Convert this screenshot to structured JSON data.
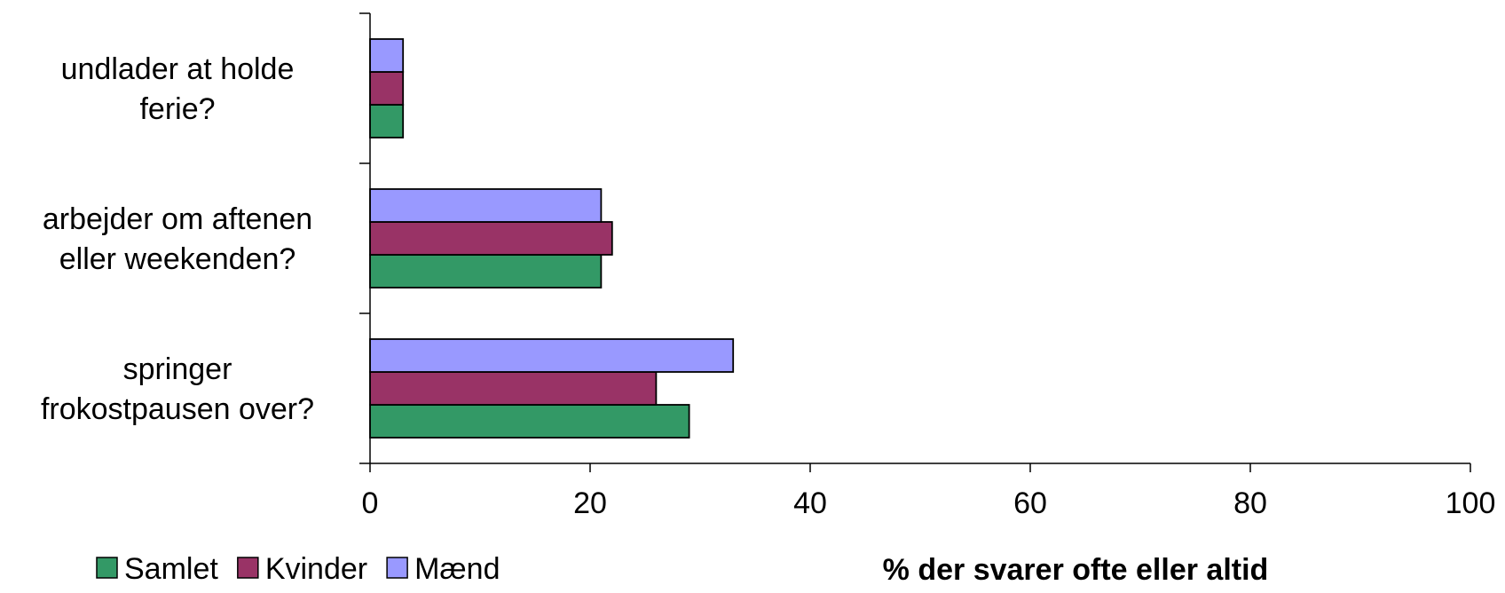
{
  "chart_data": {
    "type": "bar",
    "orientation": "horizontal",
    "categories": [
      [
        "undlader at holde",
        "ferie?"
      ],
      [
        "arbejder om aftenen",
        "eller weekenden?"
      ],
      [
        "springer",
        "frokostpausen over?"
      ]
    ],
    "series": [
      {
        "name": "Samlet",
        "color": "#339966",
        "values": [
          3,
          21,
          29
        ]
      },
      {
        "name": "Kvinder",
        "color": "#993366",
        "values": [
          3,
          22,
          26
        ]
      },
      {
        "name": "Mænd",
        "color": "#9999ff",
        "values": [
          3,
          21,
          33
        ]
      }
    ],
    "xlim": [
      0,
      100
    ],
    "xticks": [
      0,
      20,
      40,
      60,
      80,
      100
    ],
    "xlabel": "% der svarer ofte eller altid",
    "grid": false,
    "legend_position": "bottom-left"
  }
}
